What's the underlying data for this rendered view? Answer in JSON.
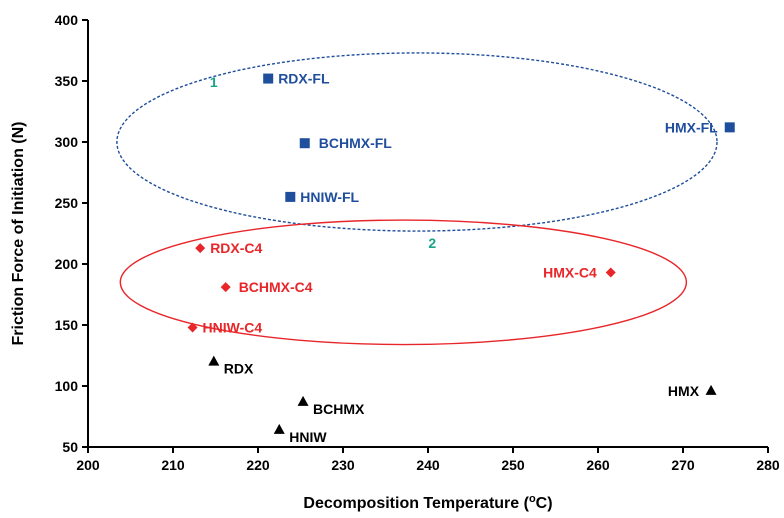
{
  "chart_data": {
    "type": "scatter",
    "xlabel": "Decomposition Temperature (",
    "xlabel_superscript": "o",
    "xlabel_suffix": "C)",
    "ylabel": "Friction Force of Initiation (N)",
    "xlim": [
      200,
      280
    ],
    "ylim": [
      50,
      400
    ],
    "xticks": [
      200,
      210,
      220,
      230,
      240,
      250,
      260,
      270,
      280
    ],
    "yticks": [
      50,
      100,
      150,
      200,
      250,
      300,
      350,
      400
    ],
    "grid": false,
    "legend": "none",
    "series": [
      {
        "marker": "square",
        "color": "#1f4e9c",
        "points": [
          {
            "x": 221.2,
            "y": 352,
            "label": "RDX-FL"
          },
          {
            "x": 225.5,
            "y": 299,
            "label": "BCHMX-FL"
          },
          {
            "x": 223.8,
            "y": 255,
            "label": "HNIW-FL"
          },
          {
            "x": 275.5,
            "y": 312,
            "label": "HMX-FL"
          }
        ]
      },
      {
        "marker": "diamond",
        "color": "#e8262a",
        "points": [
          {
            "x": 213.2,
            "y": 213,
            "label": "RDX-C4"
          },
          {
            "x": 216.2,
            "y": 181,
            "label": "BCHMX-C4"
          },
          {
            "x": 212.3,
            "y": 148,
            "label": "HNIW-C4"
          },
          {
            "x": 261.5,
            "y": 193,
            "label": "HMX-C4"
          }
        ]
      },
      {
        "marker": "triangle",
        "color": "#000000",
        "points": [
          {
            "x": 214.8,
            "y": 120,
            "label": "RDX"
          },
          {
            "x": 225.3,
            "y": 87,
            "label": "BCHMX"
          },
          {
            "x": 222.5,
            "y": 64,
            "label": "HNIW"
          },
          {
            "x": 273.3,
            "y": 96,
            "label": "HMX"
          }
        ]
      }
    ],
    "annotations": [
      {
        "text": "1",
        "x": 214.8,
        "y": 345,
        "color": "#1aa28a"
      },
      {
        "text": "2",
        "x": 240.5,
        "y": 213,
        "color": "#1aa28a"
      }
    ],
    "ellipses": [
      {
        "cx": 238.7,
        "cy": 300,
        "rx": 35.3,
        "ry": 73,
        "color": "#1f4e9c",
        "style": "dashed"
      },
      {
        "cx": 237.1,
        "cy": 185,
        "rx": 33.3,
        "ry": 51,
        "color": "#e8262a",
        "style": "solid"
      }
    ]
  }
}
